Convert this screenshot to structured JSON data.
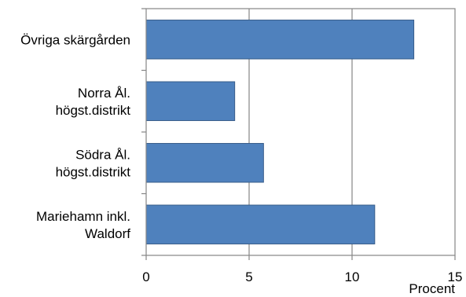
{
  "chart_data": {
    "type": "bar",
    "orientation": "horizontal",
    "title": "",
    "xlabel": "Procent",
    "ylabel": "",
    "categories": [
      "Övriga skärgården",
      "Norra Ål. högst.distrikt",
      "Södra Ål. högst.distrikt",
      "Mariehamn inkl. Waldorf"
    ],
    "category_lines": [
      [
        "Övriga skärgården"
      ],
      [
        "Norra Ål.",
        "högst.distrikt"
      ],
      [
        "Södra Ål.",
        "högst.distrikt"
      ],
      [
        "Mariehamn inkl.",
        "Waldorf"
      ]
    ],
    "values": [
      13.0,
      4.3,
      5.7,
      11.1
    ],
    "xlim": [
      0,
      15
    ],
    "xticks": [
      "0",
      "5",
      "10",
      "15"
    ],
    "grid": "vertical",
    "legend": "none",
    "bar_color": "#4f81bd",
    "bar_edge_color": "#385d8a"
  }
}
